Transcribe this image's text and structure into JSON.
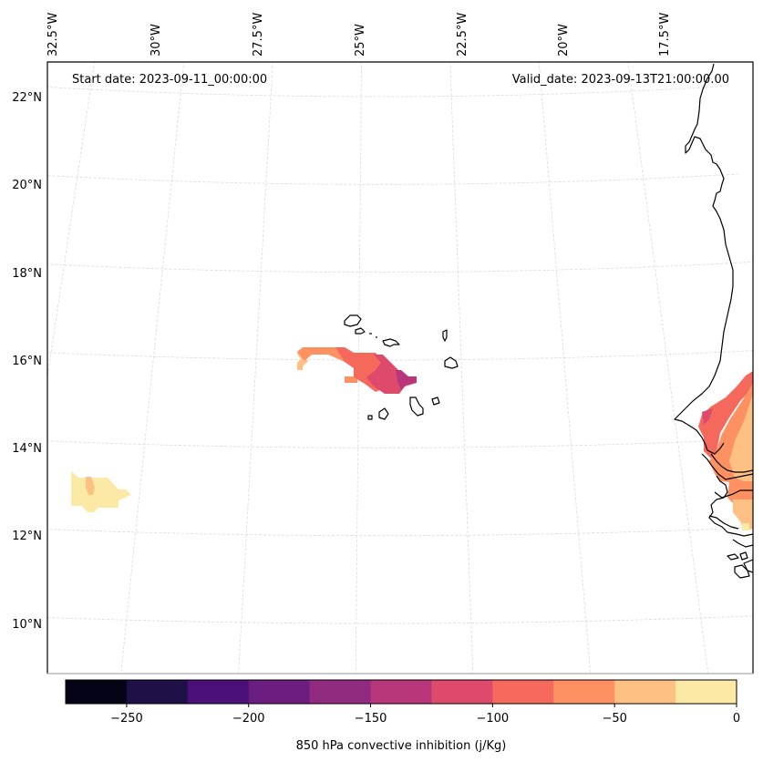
{
  "chart_data": {
    "type": "map-filled-contour",
    "projection": "lambert-conformal",
    "annotations": {
      "start_date": "Start date: 2023-09-11_00:00:00",
      "valid_date": "Valid_date: 2023-09-13T21:00:00.00"
    },
    "lon_ticks": [
      {
        "value": -32.5,
        "label": "32.5°W"
      },
      {
        "value": -30.0,
        "label": "30°W"
      },
      {
        "value": -27.5,
        "label": "27.5°W"
      },
      {
        "value": -25.0,
        "label": "25°W"
      },
      {
        "value": -22.5,
        "label": "22.5°W"
      },
      {
        "value": -20.0,
        "label": "20°W"
      },
      {
        "value": -17.5,
        "label": "17.5°W"
      }
    ],
    "lat_ticks": [
      {
        "value": 22,
        "label": "22°N"
      },
      {
        "value": 20,
        "label": "20°N"
      },
      {
        "value": 18,
        "label": "18°N"
      },
      {
        "value": 16,
        "label": "16°N"
      },
      {
        "value": 14,
        "label": "14°N"
      },
      {
        "value": 12,
        "label": "12°N"
      },
      {
        "value": 10,
        "label": "10°N"
      }
    ],
    "extent": {
      "lon": [
        -32.6,
        -16.3
      ],
      "lat": [
        9.0,
        22.8
      ]
    },
    "gridlines": true,
    "colorbar": {
      "label": "850 hPa convective inhibition (j/Kg)",
      "orientation": "horizontal",
      "placement": "bottom",
      "colormap": "magma",
      "levels": [
        -275,
        -250,
        -225,
        -200,
        -175,
        -150,
        -125,
        -100,
        -75,
        -50,
        -25,
        0
      ],
      "colors": [
        "#050417",
        "#1f1147",
        "#491078",
        "#6c1d80",
        "#912b80",
        "#b8367a",
        "#dd4a6b",
        "#f5685c",
        "#fe9161",
        "#fec083",
        "#fde9a6"
      ],
      "ticks": [
        {
          "value": -250,
          "label": "−250"
        },
        {
          "value": -200,
          "label": "−200"
        },
        {
          "value": -150,
          "label": "−150"
        },
        {
          "value": -100,
          "label": "−100"
        },
        {
          "value": -50,
          "label": "−50"
        },
        {
          "value": 0,
          "label": "0"
        }
      ]
    },
    "regions": [
      {
        "name": "atlantic-patch-west",
        "approx_center": {
          "lon": -31.8,
          "lat": 12.9
        },
        "level_ranges": [
          "-25..0",
          "-50..-25"
        ]
      },
      {
        "name": "cape-verde-band",
        "approx_center": {
          "lon": -25.0,
          "lat": 15.9
        },
        "level_ranges": [
          "-50..-25",
          "-75..-50",
          "-100..-75",
          "-125..-100",
          "-150..-125"
        ]
      },
      {
        "name": "west-africa-coast",
        "approx_center": {
          "lon": -16.6,
          "lat": 13.5
        },
        "level_ranges": [
          "-25..0",
          "-50..-25",
          "-75..-50",
          "-100..-75",
          "-125..-100"
        ]
      }
    ]
  }
}
